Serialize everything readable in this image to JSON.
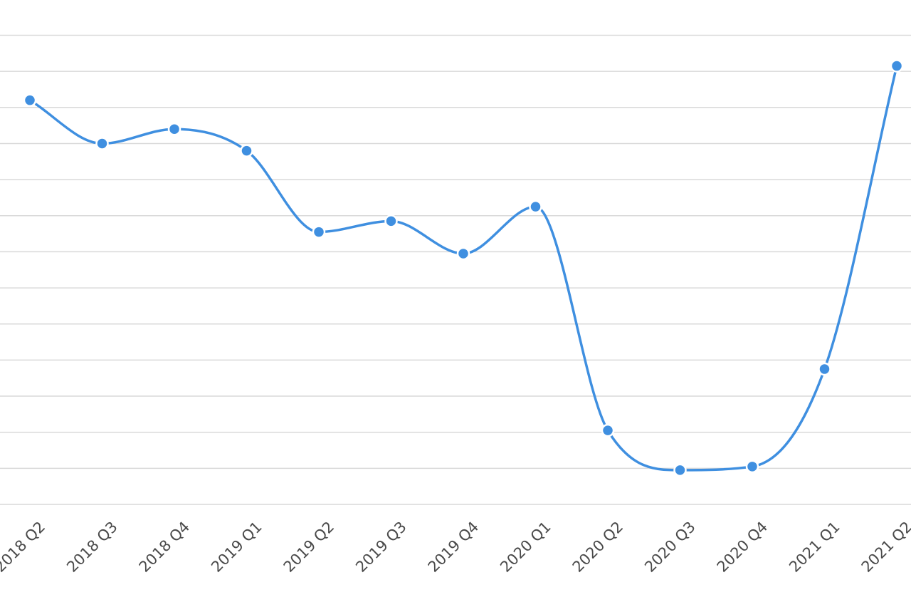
{
  "chart_data": {
    "type": "line",
    "categories": [
      "2018 Q2",
      "2018 Q3",
      "2018 Q4",
      "2019 Q1",
      "2019 Q2",
      "2019 Q3",
      "2019 Q4",
      "2020 Q1",
      "2020 Q2",
      "2020 Q3",
      "2020 Q4",
      "2021 Q1",
      "2021 Q2"
    ],
    "values": [
      11.2,
      10.0,
      10.4,
      9.8,
      7.55,
      7.85,
      6.95,
      8.25,
      2.05,
      0.95,
      1.05,
      3.75,
      12.15
    ],
    "ylim": [
      0,
      13
    ],
    "grid": true,
    "colors": {
      "line": "#3f8fe0",
      "grid": "#d9d9d9",
      "tick_text": "#4a4a4a"
    }
  }
}
